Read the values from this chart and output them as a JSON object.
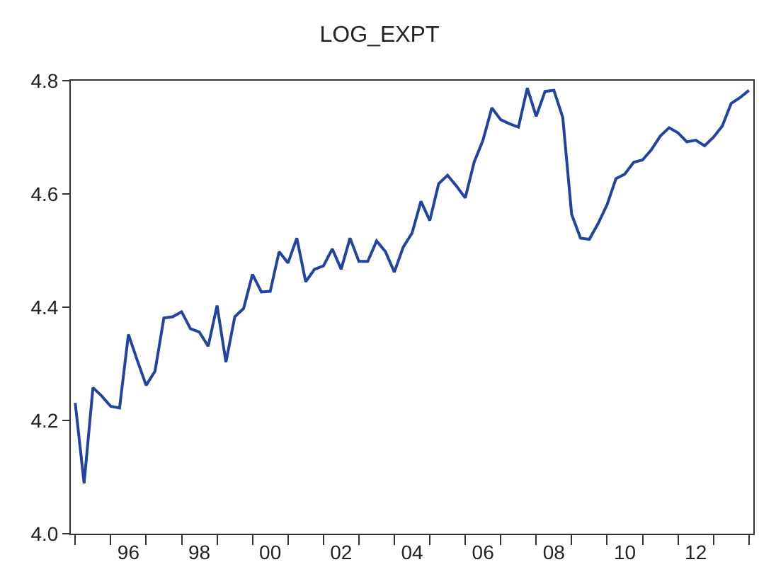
{
  "chart_data": {
    "type": "line",
    "title": "LOG_EXPT",
    "categories": [
      null,
      null,
      null,
      null,
      null,
      null,
      "96",
      null,
      null,
      null,
      null,
      null,
      null,
      null,
      "98",
      null,
      null,
      null,
      null,
      null,
      null,
      null,
      "00",
      null,
      null,
      null,
      null,
      null,
      null,
      null,
      "02",
      null,
      null,
      null,
      null,
      null,
      null,
      null,
      "04",
      null,
      null,
      null,
      null,
      null,
      null,
      null,
      "06",
      null,
      null,
      null,
      null,
      null,
      null,
      null,
      "08",
      null,
      null,
      null,
      null,
      null,
      null,
      null,
      "10",
      null,
      null,
      null,
      null,
      null,
      null,
      null,
      "12",
      null,
      null,
      null,
      null,
      null,
      null
    ],
    "series": [
      {
        "color": "#2343a0",
        "values": [
          4.231,
          4.089,
          4.258,
          4.243,
          4.225,
          4.222,
          4.352,
          4.306,
          4.262,
          4.287,
          4.381,
          4.383,
          4.392,
          4.362,
          4.356,
          4.331,
          4.403,
          4.303,
          4.383,
          4.398,
          4.458,
          4.427,
          4.428,
          4.498,
          4.478,
          4.522,
          4.445,
          4.467,
          4.473,
          4.503,
          4.467,
          4.522,
          4.481,
          4.481,
          4.517,
          4.498,
          4.462,
          4.506,
          4.531,
          4.587,
          4.553,
          4.618,
          4.633,
          4.614,
          4.593,
          4.656,
          4.695,
          4.752,
          4.731,
          4.724,
          4.718,
          4.787,
          4.737,
          4.781,
          4.783,
          4.735,
          4.564,
          4.522,
          4.52,
          4.548,
          4.581,
          4.627,
          4.635,
          4.656,
          4.66,
          4.678,
          4.702,
          4.717,
          4.708,
          4.692,
          4.695,
          4.685,
          4.7,
          4.72,
          4.76,
          4.77,
          4.783
        ]
      }
    ],
    "ylim": [
      4.0,
      4.8
    ],
    "yticks": [
      {
        "value": 4.0,
        "label": "4.0"
      },
      4.2,
      4.4,
      4.6,
      4.8
    ],
    "grid": false,
    "marker": "none",
    "line_style": "solid"
  }
}
